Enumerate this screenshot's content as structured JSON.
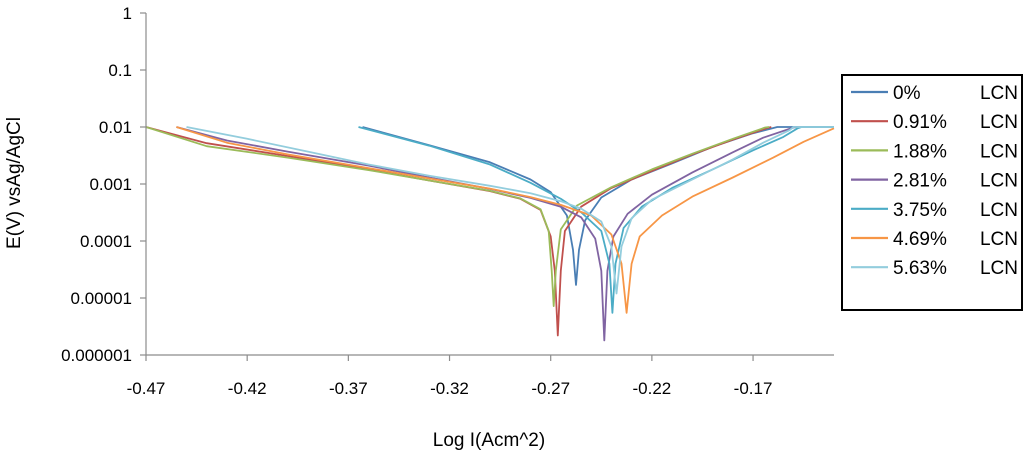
{
  "chart_data": {
    "type": "line",
    "xlabel": "Log I(Acm^2)",
    "ylabel": "E(V) vsAg/AgCl",
    "xlim": [
      -0.47,
      -0.13
    ],
    "ylim": [
      1e-06,
      1
    ],
    "yscale": "log",
    "grid": false,
    "legend_position": "right",
    "x_ticks": [
      -0.47,
      -0.42,
      -0.37,
      -0.32,
      -0.27,
      -0.22,
      -0.17
    ],
    "x_tick_labels": [
      "-0.47",
      "-0.42",
      "-0.37",
      "-0.32",
      "-0.27",
      "-0.22",
      "-0.17"
    ],
    "y_ticks": [
      1e-06,
      1e-05,
      0.0001,
      0.001,
      0.01,
      0.1,
      1
    ],
    "y_tick_labels": [
      "0.000001",
      "0.00001",
      "0.0001",
      "0.001",
      "0.01",
      "0.1",
      "1"
    ],
    "series": [
      {
        "name": "0%",
        "legend_suffix": "LCN",
        "color": "#4a7eb4",
        "points": [
          [
            -0.363,
            0.01
          ],
          [
            -0.33,
            0.0048
          ],
          [
            -0.3,
            0.0024
          ],
          [
            -0.28,
            0.0012
          ],
          [
            -0.27,
            0.00072
          ],
          [
            -0.262,
            0.00028
          ],
          [
            -0.259,
            7e-05
          ],
          [
            -0.2575,
            1.7e-05
          ],
          [
            -0.256,
            7e-05
          ],
          [
            -0.253,
            0.00023
          ],
          [
            -0.245,
            0.00058
          ],
          [
            -0.23,
            0.0012
          ],
          [
            -0.21,
            0.0023
          ],
          [
            -0.19,
            0.0045
          ],
          [
            -0.17,
            0.0078
          ],
          [
            -0.158,
            0.01
          ],
          [
            -0.13,
            0.01
          ]
        ]
      },
      {
        "name": "0.91%",
        "legend_suffix": "LCN",
        "color": "#c0504d",
        "points": [
          [
            -0.47,
            0.01
          ],
          [
            -0.44,
            0.0052
          ],
          [
            -0.4,
            0.0031
          ],
          [
            -0.36,
            0.0018
          ],
          [
            -0.33,
            0.00115
          ],
          [
            -0.3,
            0.00075
          ],
          [
            -0.285,
            0.00055
          ],
          [
            -0.275,
            0.00035
          ],
          [
            -0.27,
            0.00012
          ],
          [
            -0.268,
            3e-05
          ],
          [
            -0.2665,
            2.2e-06
          ],
          [
            -0.265,
            3e-05
          ],
          [
            -0.263,
            0.00015
          ],
          [
            -0.255,
            0.0004
          ],
          [
            -0.24,
            0.00085
          ],
          [
            -0.22,
            0.0017
          ],
          [
            -0.2,
            0.0033
          ],
          [
            -0.18,
            0.006
          ],
          [
            -0.163,
            0.0096
          ],
          [
            -0.161,
            0.01
          ]
        ]
      },
      {
        "name": "1.88%",
        "legend_suffix": "LCN",
        "color": "#9bbb59",
        "points": [
          [
            -0.47,
            0.01
          ],
          [
            -0.44,
            0.0046
          ],
          [
            -0.4,
            0.0029
          ],
          [
            -0.36,
            0.00175
          ],
          [
            -0.33,
            0.00115
          ],
          [
            -0.3,
            0.00076
          ],
          [
            -0.285,
            0.00056
          ],
          [
            -0.275,
            0.00036
          ],
          [
            -0.271,
            0.00015
          ],
          [
            -0.2695,
            3e-05
          ],
          [
            -0.2685,
            7.2e-06
          ],
          [
            -0.2675,
            3e-05
          ],
          [
            -0.265,
            0.00016
          ],
          [
            -0.257,
            0.00042
          ],
          [
            -0.24,
            0.00088
          ],
          [
            -0.22,
            0.0018
          ],
          [
            -0.2,
            0.0034
          ],
          [
            -0.18,
            0.0062
          ],
          [
            -0.164,
            0.0098
          ],
          [
            -0.162,
            0.01
          ]
        ]
      },
      {
        "name": "2.81%",
        "legend_suffix": "LCN",
        "color": "#8064a2",
        "points": [
          [
            -0.455,
            0.01
          ],
          [
            -0.43,
            0.0058
          ],
          [
            -0.4,
            0.0037
          ],
          [
            -0.36,
            0.0021
          ],
          [
            -0.33,
            0.0013
          ],
          [
            -0.3,
            0.00082
          ],
          [
            -0.28,
            0.00057
          ],
          [
            -0.265,
            0.0004
          ],
          [
            -0.255,
            0.00026
          ],
          [
            -0.248,
            0.00011
          ],
          [
            -0.245,
            3e-05
          ],
          [
            -0.2435,
            1.8e-06
          ],
          [
            -0.242,
            3e-05
          ],
          [
            -0.239,
            0.00012
          ],
          [
            -0.232,
            0.0003
          ],
          [
            -0.22,
            0.00065
          ],
          [
            -0.2,
            0.0016
          ],
          [
            -0.18,
            0.0036
          ],
          [
            -0.165,
            0.0065
          ],
          [
            -0.15,
            0.0098
          ],
          [
            -0.148,
            0.01
          ]
        ]
      },
      {
        "name": "3.75%",
        "legend_suffix": "LCN",
        "color": "#4bacc6",
        "points": [
          [
            -0.365,
            0.01
          ],
          [
            -0.33,
            0.0047
          ],
          [
            -0.3,
            0.0022
          ],
          [
            -0.28,
            0.00105
          ],
          [
            -0.265,
            0.00055
          ],
          [
            -0.255,
            0.00032
          ],
          [
            -0.245,
            0.00015
          ],
          [
            -0.241,
            4e-05
          ],
          [
            -0.2395,
            5.5e-06
          ],
          [
            -0.238,
            4e-05
          ],
          [
            -0.234,
            0.00017
          ],
          [
            -0.225,
            0.0004
          ],
          [
            -0.21,
            0.00085
          ],
          [
            -0.19,
            0.0018
          ],
          [
            -0.17,
            0.0039
          ],
          [
            -0.155,
            0.0067
          ],
          [
            -0.148,
            0.0095
          ],
          [
            -0.146,
            0.01
          ],
          [
            -0.13,
            0.01
          ]
        ]
      },
      {
        "name": "4.69%",
        "legend_suffix": "LCN",
        "color": "#f79646",
        "points": [
          [
            -0.455,
            0.01
          ],
          [
            -0.43,
            0.0053
          ],
          [
            -0.4,
            0.0033
          ],
          [
            -0.36,
            0.0019
          ],
          [
            -0.33,
            0.00125
          ],
          [
            -0.3,
            0.00083
          ],
          [
            -0.28,
            0.00059
          ],
          [
            -0.265,
            0.00043
          ],
          [
            -0.25,
            0.00028
          ],
          [
            -0.24,
            0.00013
          ],
          [
            -0.235,
            4e-05
          ],
          [
            -0.2325,
            5.5e-06
          ],
          [
            -0.23,
            4e-05
          ],
          [
            -0.226,
            0.00012
          ],
          [
            -0.215,
            0.00028
          ],
          [
            -0.2,
            0.0006
          ],
          [
            -0.18,
            0.0013
          ],
          [
            -0.16,
            0.0029
          ],
          [
            -0.145,
            0.0055
          ],
          [
            -0.13,
            0.0095
          ]
        ]
      },
      {
        "name": "5.63%",
        "legend_suffix": "LCN",
        "color": "#93cddd",
        "points": [
          [
            -0.45,
            0.01
          ],
          [
            -0.42,
            0.0062
          ],
          [
            -0.39,
            0.0037
          ],
          [
            -0.36,
            0.0022
          ],
          [
            -0.33,
            0.0014
          ],
          [
            -0.3,
            0.00093
          ],
          [
            -0.28,
            0.00069
          ],
          [
            -0.265,
            0.0005
          ],
          [
            -0.255,
            0.00037
          ],
          [
            -0.245,
            0.00022
          ],
          [
            -0.24,
            8e-05
          ],
          [
            -0.2375,
            1.2e-05
          ],
          [
            -0.235,
            8e-05
          ],
          [
            -0.23,
            0.00025
          ],
          [
            -0.22,
            0.00053
          ],
          [
            -0.2,
            0.0012
          ],
          [
            -0.18,
            0.0027
          ],
          [
            -0.165,
            0.0053
          ],
          [
            -0.152,
            0.0088
          ],
          [
            -0.15,
            0.01
          ],
          [
            -0.13,
            0.01
          ]
        ]
      }
    ]
  }
}
